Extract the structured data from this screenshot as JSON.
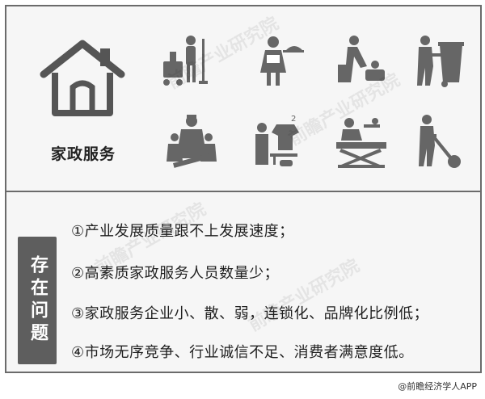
{
  "service": {
    "title": "家政服务"
  },
  "issues": {
    "label": "存在问题",
    "items": [
      "①产业发展质量跟不上发展速度；",
      "②高素质家政服务人员数量少；",
      "③家政服务企业小、散、弱，连锁化、品牌化比例低；",
      "④市场无序竞争、行业诚信不足、消费者满意度低。"
    ]
  },
  "icons": [
    "cleaning-cart-icon",
    "waiter-tray-icon",
    "child-care-icon",
    "trash-bin-worker-icon",
    "nanny-children-icon",
    "laundry-ironing-icon",
    "massage-bed-icon",
    "vacuum-worker-icon"
  ],
  "watermark": "前瞻产业研究院",
  "credit": "@前瞻经济学人APP",
  "colors": {
    "panel": "#f6f6f6",
    "border": "#6b6b6b",
    "label_bg": "#5e5e5e"
  }
}
